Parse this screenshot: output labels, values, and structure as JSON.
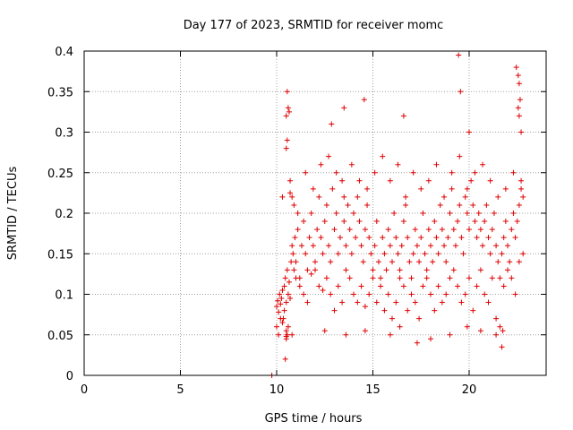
{
  "chart_data": {
    "type": "scatter",
    "title": "Day 177 of 2023, SRMTID for receiver momc",
    "xlabel": "GPS time / hours",
    "ylabel": "SRMTID / TECUs",
    "xlim": [
      0,
      24
    ],
    "ylim": [
      0,
      0.4
    ],
    "x_ticks": [
      0,
      5,
      10,
      15,
      20
    ],
    "x_tick_labels": [
      "0",
      "5",
      "10",
      "15",
      "20"
    ],
    "y_ticks": [
      0,
      0.05,
      0.1,
      0.15,
      0.2,
      0.25,
      0.3,
      0.35,
      0.4
    ],
    "y_tick_labels": [
      "0",
      "0.05",
      "0.1",
      "0.15",
      "0.2",
      "0.25",
      "0.3",
      "0.35",
      "0.4"
    ],
    "grid": true,
    "marker": "plus",
    "color": "#e00000",
    "series": [
      {
        "name": "SRMTID",
        "x": [
          9.75,
          10.0,
          10.05,
          10.1,
          10.15,
          10.2,
          10.25,
          10.3,
          10.35,
          10.4,
          10.45,
          10.5,
          10.55,
          10.6,
          10.65,
          10.7,
          10.75,
          10.8,
          10.85,
          10.9,
          10.95,
          11.0,
          11.1,
          11.2,
          11.3,
          11.4,
          11.5,
          11.6,
          11.7,
          11.8,
          11.9,
          12.0,
          12.1,
          12.2,
          12.3,
          12.4,
          12.5,
          12.6,
          12.7,
          12.8,
          12.9,
          13.0,
          13.1,
          13.2,
          13.3,
          13.4,
          13.5,
          13.6,
          13.7,
          13.8,
          13.9,
          14.0,
          14.1,
          14.2,
          14.3,
          14.4,
          14.5,
          14.6,
          14.7,
          14.8,
          14.9,
          15.0,
          15.1,
          15.2,
          15.3,
          15.4,
          15.5,
          15.6,
          15.7,
          15.8,
          15.9,
          16.0,
          16.1,
          16.2,
          16.3,
          16.4,
          16.5,
          16.6,
          16.7,
          16.8,
          16.9,
          17.0,
          17.1,
          17.2,
          17.3,
          17.4,
          17.5,
          17.6,
          17.7,
          17.8,
          17.9,
          18.0,
          18.1,
          18.2,
          18.3,
          18.4,
          18.5,
          18.6,
          18.7,
          18.8,
          18.9,
          19.0,
          19.1,
          19.2,
          19.3,
          19.4,
          19.5,
          19.6,
          19.7,
          19.8,
          19.9,
          20.0,
          20.1,
          20.2,
          20.3,
          20.4,
          20.5,
          20.6,
          20.7,
          20.8,
          20.9,
          21.0,
          21.1,
          21.2,
          21.3,
          21.4,
          21.5,
          21.6,
          21.7,
          21.8,
          21.9,
          22.0,
          22.1,
          22.2,
          22.3,
          22.4,
          22.5,
          22.6,
          22.7,
          22.8,
          10.0,
          10.1,
          10.2,
          10.3,
          10.4,
          10.5,
          10.6,
          10.5,
          10.55,
          10.6,
          10.65,
          10.5,
          10.55,
          10.7,
          10.8,
          10.9,
          11.0,
          11.2,
          11.4,
          11.6,
          11.8,
          12.0,
          12.2,
          12.4,
          12.6,
          12.8,
          13.0,
          13.2,
          13.4,
          13.6,
          13.8,
          14.0,
          14.2,
          14.4,
          14.6,
          14.8,
          15.0,
          15.2,
          15.4,
          15.6,
          15.8,
          16.0,
          16.2,
          16.4,
          16.6,
          16.8,
          17.0,
          17.2,
          17.4,
          17.6,
          17.8,
          18.0,
          18.2,
          18.4,
          18.6,
          18.8,
          19.0,
          19.2,
          19.4,
          19.6,
          19.8,
          20.0,
          20.2,
          20.4,
          20.6,
          20.8,
          21.0,
          21.2,
          21.4,
          21.6,
          21.8,
          22.0,
          22.2,
          22.4,
          22.6,
          22.8,
          10.3,
          10.7,
          11.1,
          11.5,
          11.9,
          12.3,
          12.7,
          13.1,
          13.5,
          13.9,
          14.3,
          14.7,
          15.1,
          15.5,
          15.9,
          16.3,
          16.7,
          17.1,
          17.5,
          17.9,
          18.3,
          18.7,
          19.1,
          19.5,
          19.9,
          20.3,
          20.7,
          21.1,
          21.5,
          21.9,
          22.3,
          22.7,
          12.85,
          13.5,
          14.55,
          16.6,
          19.45,
          19.55,
          20.0,
          22.45,
          22.55,
          22.6,
          22.65,
          22.7,
          22.55,
          22.6,
          10.45,
          10.5,
          10.55,
          10.5,
          10.8,
          12.5,
          13.6,
          14.6,
          15.9,
          16.4,
          17.3,
          18.0,
          19.0,
          19.9,
          20.6,
          21.4,
          21.7,
          21.75
        ],
        "y": [
          0.0,
          0.085,
          0.092,
          0.078,
          0.1,
          0.088,
          0.095,
          0.105,
          0.07,
          0.11,
          0.12,
          0.09,
          0.13,
          0.1,
          0.115,
          0.095,
          0.14,
          0.16,
          0.15,
          0.13,
          0.17,
          0.14,
          0.18,
          0.12,
          0.16,
          0.19,
          0.15,
          0.13,
          0.17,
          0.2,
          0.16,
          0.14,
          0.18,
          0.22,
          0.17,
          0.15,
          0.19,
          0.21,
          0.16,
          0.14,
          0.23,
          0.18,
          0.2,
          0.15,
          0.17,
          0.24,
          0.19,
          0.16,
          0.21,
          0.18,
          0.15,
          0.2,
          0.17,
          0.22,
          0.19,
          0.16,
          0.14,
          0.18,
          0.21,
          0.17,
          0.15,
          0.13,
          0.16,
          0.19,
          0.14,
          0.12,
          0.17,
          0.15,
          0.13,
          0.18,
          0.16,
          0.14,
          0.2,
          0.17,
          0.15,
          0.13,
          0.16,
          0.19,
          0.21,
          0.17,
          0.14,
          0.12,
          0.15,
          0.18,
          0.16,
          0.14,
          0.17,
          0.2,
          0.15,
          0.13,
          0.18,
          0.16,
          0.14,
          0.19,
          0.17,
          0.15,
          0.21,
          0.18,
          0.16,
          0.14,
          0.17,
          0.2,
          0.23,
          0.18,
          0.16,
          0.19,
          0.21,
          0.17,
          0.15,
          0.22,
          0.2,
          0.18,
          0.24,
          0.21,
          0.19,
          0.17,
          0.2,
          0.18,
          0.16,
          0.19,
          0.21,
          0.17,
          0.15,
          0.18,
          0.2,
          0.16,
          0.14,
          0.12,
          0.15,
          0.17,
          0.19,
          0.16,
          0.14,
          0.18,
          0.2,
          0.17,
          0.19,
          0.21,
          0.23,
          0.22,
          0.06,
          0.05,
          0.07,
          0.065,
          0.08,
          0.055,
          0.06,
          0.28,
          0.29,
          0.33,
          0.325,
          0.32,
          0.35,
          0.225,
          0.22,
          0.21,
          0.12,
          0.11,
          0.1,
          0.09,
          0.125,
          0.13,
          0.11,
          0.105,
          0.12,
          0.1,
          0.08,
          0.11,
          0.09,
          0.13,
          0.12,
          0.1,
          0.09,
          0.11,
          0.085,
          0.1,
          0.12,
          0.09,
          0.11,
          0.08,
          0.1,
          0.07,
          0.09,
          0.12,
          0.11,
          0.08,
          0.1,
          0.09,
          0.07,
          0.11,
          0.12,
          0.1,
          0.08,
          0.11,
          0.09,
          0.1,
          0.12,
          0.13,
          0.11,
          0.09,
          0.1,
          0.12,
          0.08,
          0.11,
          0.13,
          0.1,
          0.09,
          0.12,
          0.07,
          0.06,
          0.11,
          0.13,
          0.12,
          0.1,
          0.14,
          0.15,
          0.22,
          0.24,
          0.2,
          0.25,
          0.23,
          0.26,
          0.27,
          0.25,
          0.22,
          0.26,
          0.24,
          0.23,
          0.25,
          0.27,
          0.24,
          0.26,
          0.22,
          0.25,
          0.23,
          0.24,
          0.26,
          0.22,
          0.25,
          0.27,
          0.23,
          0.25,
          0.26,
          0.24,
          0.22,
          0.23,
          0.25,
          0.24,
          0.31,
          0.33,
          0.34,
          0.32,
          0.395,
          0.35,
          0.3,
          0.38,
          0.37,
          0.36,
          0.34,
          0.3,
          0.33,
          0.32,
          0.02,
          0.045,
          0.05,
          0.048,
          0.05,
          0.055,
          0.05,
          0.055,
          0.05,
          0.06,
          0.04,
          0.045,
          0.05,
          0.06,
          0.055,
          0.05,
          0.035,
          0.055
        ]
      }
    ]
  }
}
